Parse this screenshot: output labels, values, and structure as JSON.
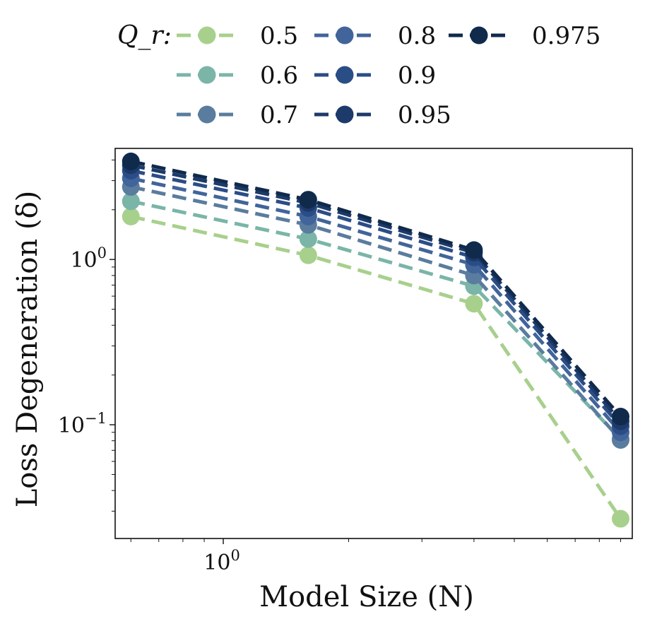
{
  "chart_data": {
    "type": "line",
    "xscale": "log",
    "yscale": "log",
    "xlabel": "Model Size (N)",
    "ylabel": "Loss Degeneration (δ)",
    "x": [
      0.6,
      1.6,
      4.0,
      9.0
    ],
    "xlim": [
      0.55,
      9.6
    ],
    "ylim": [
      0.0205,
      4.7
    ],
    "xticks": [
      {
        "value": 1.0,
        "label": "10^0"
      }
    ],
    "yticks": [
      {
        "value": 1.0,
        "label": "10^0"
      },
      {
        "value": 0.1,
        "label": "10^-1"
      }
    ],
    "legend": {
      "title": "Q_r:",
      "placement": "top",
      "columns": 3
    },
    "grid": false,
    "series": [
      {
        "name": "0.5",
        "color": "#a8d08d",
        "values": [
          1.82,
          1.06,
          0.54,
          0.027
        ]
      },
      {
        "name": "0.6",
        "color": "#7ab5a8",
        "values": [
          2.25,
          1.33,
          0.69,
          0.082
        ]
      },
      {
        "name": "0.7",
        "color": "#5a7c9e",
        "values": [
          2.75,
          1.62,
          0.8,
          0.081
        ]
      },
      {
        "name": "0.8",
        "color": "#41649a",
        "values": [
          3.1,
          1.82,
          0.93,
          0.09
        ]
      },
      {
        "name": "0.9",
        "color": "#2b4d86",
        "values": [
          3.45,
          2.05,
          1.03,
          0.098
        ]
      },
      {
        "name": "0.95",
        "color": "#1c3a6a",
        "values": [
          3.72,
          2.2,
          1.1,
          0.105
        ]
      },
      {
        "name": "0.975",
        "color": "#102a4c",
        "values": [
          3.92,
          2.3,
          1.14,
          0.112
        ]
      }
    ]
  }
}
